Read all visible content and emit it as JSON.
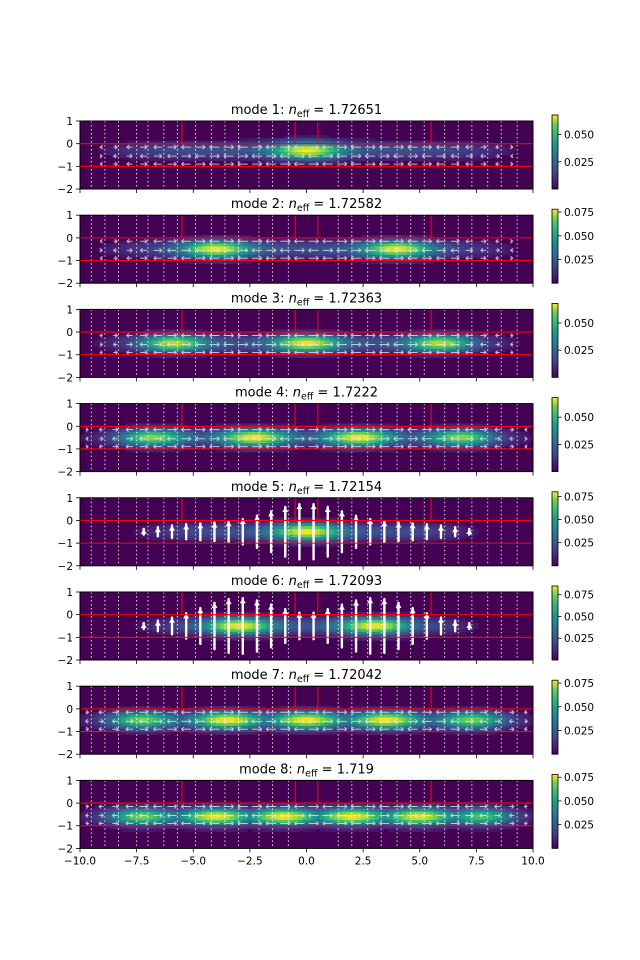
{
  "chart_data": {
    "type": "heatmap",
    "x_range": [
      -10.0,
      10.0
    ],
    "y_range": [
      -2,
      1
    ],
    "x_ticks": [
      "−10.0",
      "−7.5",
      "−5.0",
      "−2.5",
      "0.0",
      "2.5",
      "5.0",
      "7.5",
      "10.0"
    ],
    "x_tick_values": [
      -10,
      -7.5,
      -5,
      -2.5,
      0,
      2.5,
      5,
      7.5,
      10
    ],
    "y_ticks": [
      "1",
      "0",
      "−1",
      "−2"
    ],
    "y_tick_values": [
      1,
      0,
      -1,
      -2
    ],
    "colormap": "viridis",
    "guide_color": "#ff0000",
    "horizontal_guides_y": [
      0,
      -1
    ],
    "vertical_guides_x": [
      -5.5,
      -0.5,
      0.5,
      5.5
    ],
    "dotted_lines_x": [
      -9.5,
      -8.9,
      -8.3,
      -7.5,
      -7.0,
      -6.3,
      -5.7,
      -4.9,
      -4.2,
      -3.6,
      -3.0,
      -2.1,
      -1.5,
      -0.8,
      1.4,
      2.0,
      2.7,
      3.3,
      4.0,
      4.6,
      5.2,
      6.1,
      6.7,
      7.3,
      8.0,
      8.6,
      9.3
    ],
    "modes": [
      {
        "title_prefix": "mode 1: ",
        "n_eff": "1.72651",
        "profile_center": -0.3,
        "peaks": [
          0
        ],
        "envelope_half_width": 8.5,
        "strong_vectors": false,
        "colorbar_ticks": [
          "0.050",
          "0.025"
        ],
        "colorbar_values": [
          0.05,
          0.025
        ],
        "colorbar_max": 0.068
      },
      {
        "title_prefix": "mode 2: ",
        "n_eff": "1.72582",
        "profile_center": -0.5,
        "peaks": [
          -4,
          4
        ],
        "envelope_half_width": 8.5,
        "strong_vectors": false,
        "colorbar_ticks": [
          "0.075",
          "0.050",
          "0.025"
        ],
        "colorbar_values": [
          0.075,
          0.05,
          0.025
        ],
        "colorbar_max": 0.078
      },
      {
        "title_prefix": "mode 3: ",
        "n_eff": "1.72363",
        "profile_center": -0.5,
        "peaks": [
          -6,
          0,
          6
        ],
        "envelope_half_width": 8.7,
        "strong_vectors": false,
        "colorbar_ticks": [
          "0.050",
          "0.025"
        ],
        "colorbar_values": [
          0.05,
          0.025
        ],
        "colorbar_max": 0.068
      },
      {
        "title_prefix": "mode 4: ",
        "n_eff": "1.7222",
        "profile_center": -0.5,
        "peaks": [
          -7,
          -2.3,
          2.3,
          7
        ],
        "envelope_half_width": 9.2,
        "strong_vectors": false,
        "colorbar_ticks": [
          "0.050",
          "0.025"
        ],
        "colorbar_values": [
          0.05,
          0.025
        ],
        "colorbar_max": 0.068
      },
      {
        "title_prefix": "mode 5: ",
        "n_eff": "1.72154",
        "profile_center": -0.5,
        "peaks": [
          0
        ],
        "envelope_half_width": 7.0,
        "strong_vectors": true,
        "colorbar_ticks": [
          "0.075",
          "0.050",
          "0.025"
        ],
        "colorbar_values": [
          0.075,
          0.05,
          0.025
        ],
        "colorbar_max": 0.08
      },
      {
        "title_prefix": "mode 6: ",
        "n_eff": "1.72093",
        "profile_center": -0.5,
        "peaks": [
          -3,
          3
        ],
        "envelope_half_width": 7.0,
        "strong_vectors": true,
        "colorbar_ticks": [
          "0.075",
          "0.050",
          "0.025"
        ],
        "colorbar_values": [
          0.075,
          0.05,
          0.025
        ],
        "colorbar_max": 0.085
      },
      {
        "title_prefix": "mode 7: ",
        "n_eff": "1.72042",
        "profile_center": -0.5,
        "peaks": [
          -7.5,
          -3.5,
          0,
          3.5,
          7.5
        ],
        "envelope_half_width": 9.5,
        "strong_vectors": false,
        "colorbar_ticks": [
          "0.075",
          "0.050",
          "0.025"
        ],
        "colorbar_values": [
          0.075,
          0.05,
          0.025
        ],
        "colorbar_max": 0.078
      },
      {
        "title_prefix": "mode 8: ",
        "n_eff": "1.719",
        "profile_center": -0.6,
        "peaks": [
          -7.5,
          -4,
          -1,
          2,
          5,
          8
        ],
        "envelope_half_width": 9.5,
        "strong_vectors": false,
        "colorbar_ticks": [
          "0.075",
          "0.050",
          "0.025"
        ],
        "colorbar_values": [
          0.075,
          0.05,
          0.025
        ],
        "colorbar_max": 0.078
      }
    ]
  }
}
